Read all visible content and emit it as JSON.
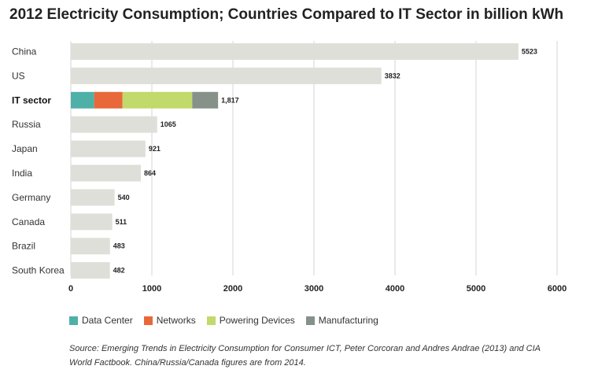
{
  "chart_data": {
    "type": "bar",
    "orientation": "horizontal",
    "title": "2012 Electricity Consumption; Countries Compared to IT Sector in billion kWh",
    "categories": [
      "China",
      "US",
      "IT sector",
      "Russia",
      "Japan",
      "India",
      "Germany",
      "Canada",
      "Brazil",
      "South Korea"
    ],
    "values": [
      5523,
      3832,
      1817,
      1065,
      921,
      864,
      540,
      511,
      483,
      482
    ],
    "value_labels": [
      "5523",
      "3832",
      "1,817",
      "1065",
      "921",
      "864",
      "540",
      "511",
      "483",
      "482"
    ],
    "highlight_category": "IT sector",
    "stacked_breakdown": {
      "category": "IT sector",
      "segments": [
        {
          "name": "Data Center",
          "value": 288,
          "color": "#4fb0a8"
        },
        {
          "name": "Networks",
          "value": 350,
          "color": "#e8683a"
        },
        {
          "name": "Powering Devices",
          "value": 860,
          "color": "#c2d96b"
        },
        {
          "name": "Manufacturing",
          "value": 319,
          "color": "#86918a"
        }
      ]
    },
    "bar_color": "#dfdfd9",
    "xlim": [
      0,
      6000
    ],
    "xticks": [
      0,
      1000,
      2000,
      3000,
      4000,
      5000,
      6000
    ],
    "grid": true,
    "legend_position": "bottom-left"
  },
  "source_note": "Source: Emerging Trends in Electricity Consumption for Consumer ICT, Peter Corcoran and Andres Andrae (2013) and CIA World Factbook. China/Russia/Canada figures are from 2014."
}
